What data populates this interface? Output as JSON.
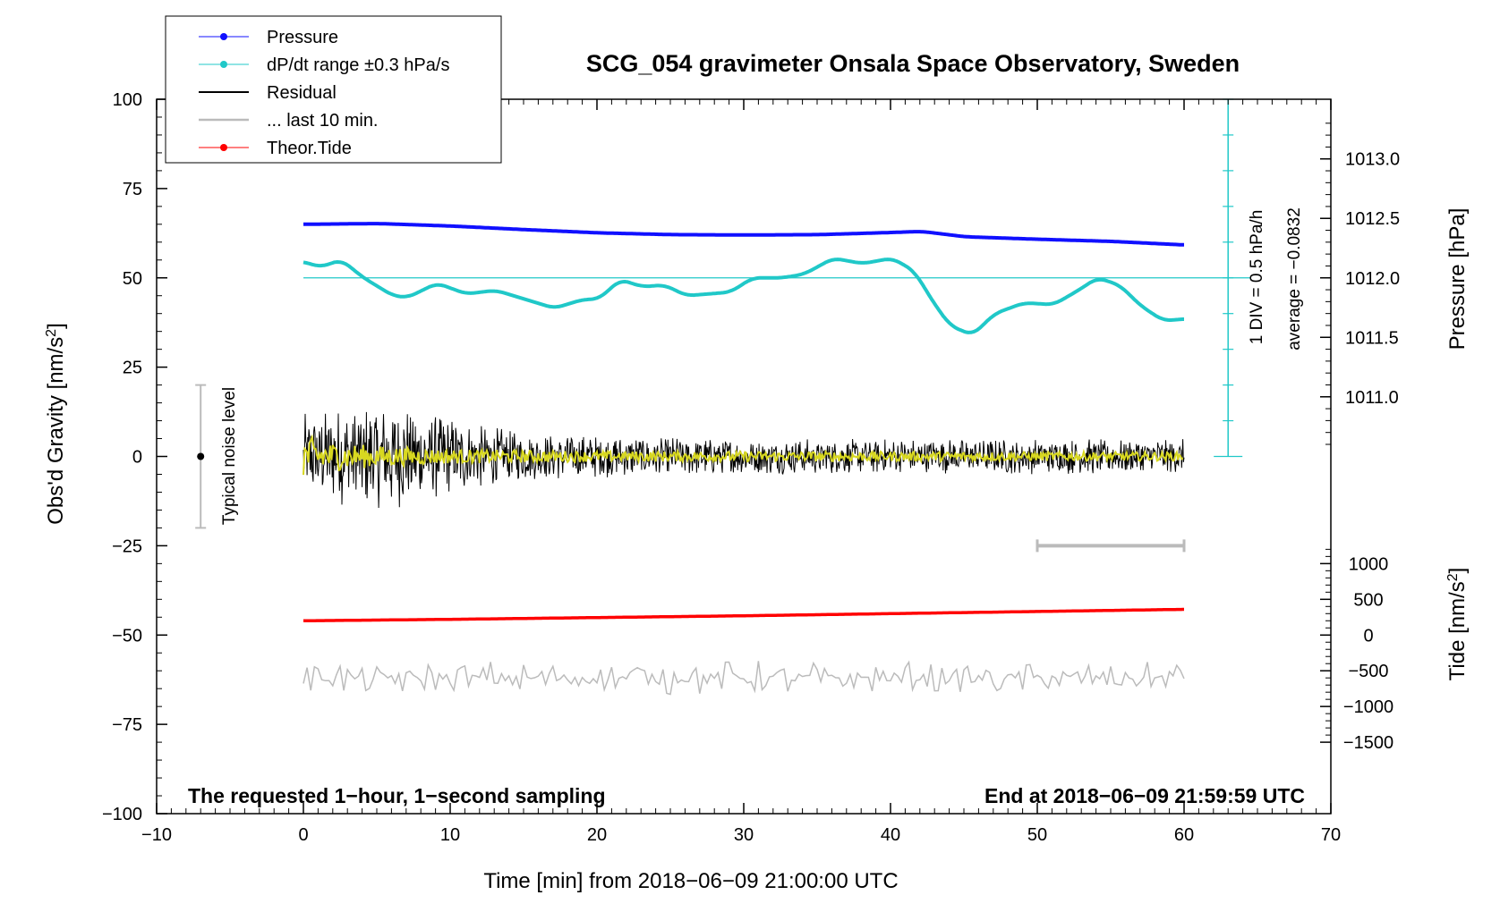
{
  "chart_data": {
    "type": "line",
    "title": "SCG_054 gravimeter Onsala Space Observatory, Sweden",
    "xlabel": "Time [min] from 2018−06−09 21:00:00 UTC",
    "ylabel_left": "Obs'd Gravity [nm/s²]",
    "ylabel_right_pressure": "Pressure [hPa]",
    "ylabel_right_tide": "Tide [nm/s²]",
    "xlim": [
      -10,
      70
    ],
    "ylim": [
      -100,
      100
    ],
    "x_ticks": [
      -10,
      0,
      10,
      20,
      30,
      40,
      50,
      60,
      70
    ],
    "x_tick_labels": [
      "−10",
      "0",
      "10",
      "20",
      "30",
      "40",
      "50",
      "60",
      "70"
    ],
    "y_ticks": [
      100,
      75,
      50,
      25,
      0,
      -25,
      -50,
      -75,
      -100
    ],
    "y_tick_labels": [
      "100",
      "75",
      "50",
      "25",
      "0",
      "−25",
      "−50",
      "−75",
      "−100"
    ],
    "pressure_axis": {
      "ticks": [
        1013.0,
        1012.5,
        1012.0,
        1011.5,
        1011.0
      ],
      "tick_labels": [
        "1013.0",
        "1012.5",
        "1012.0",
        "1011.5",
        "1011.0"
      ],
      "gravity_equiv_of_1013": 83.3,
      "nm_per_hpa": 33.3
    },
    "tide_axis": {
      "ticks": [
        1000,
        500,
        0,
        -500,
        -1000,
        -1500
      ],
      "tick_labels": [
        "1000",
        "500",
        "0",
        "−500",
        "−1000",
        "−1500"
      ],
      "gravity_equiv_of_0": -50,
      "nm_per_unit": 0.02
    },
    "grid": false,
    "legend_position": "top-left",
    "legend": [
      {
        "label": "Pressure",
        "color": "#1010ff",
        "marker": true
      },
      {
        "label": "dP/dt range ±0.3 hPa/s",
        "color": "#20c8c8",
        "marker": true
      },
      {
        "label": "Residual",
        "color": "#000000",
        "marker": false
      },
      {
        "label": "... last 10 min.",
        "color": "#bbbbbb",
        "marker": false
      },
      {
        "label": "Theor.Tide",
        "color": "#ff0000",
        "marker": true
      }
    ],
    "series": [
      {
        "name": "Pressure",
        "color": "#1010ff",
        "axis": "gravity-equivalent",
        "x": [
          0,
          5,
          10,
          15,
          20,
          25,
          30,
          35,
          40,
          42,
          45,
          50,
          55,
          60
        ],
        "y": [
          65,
          65.2,
          64.5,
          63.5,
          62.6,
          62.1,
          62.0,
          62.1,
          62.7,
          63.0,
          61.5,
          60.8,
          60.2,
          59.2
        ]
      },
      {
        "name": "dP/dt",
        "color": "#20c8c8",
        "axis": "gravity-equivalent",
        "x": [
          0,
          1,
          2.5,
          4,
          6,
          7,
          9,
          11,
          13,
          15,
          17,
          19,
          20,
          21.5,
          23,
          24.5,
          26,
          27.5,
          29,
          30.5,
          32.5,
          34,
          36,
          38,
          40,
          41.5,
          43,
          44,
          45.5,
          47,
          49,
          51,
          52.5,
          54,
          55.5,
          57,
          58.5,
          60
        ],
        "y": [
          54.5,
          53,
          55,
          50,
          45,
          44.5,
          48.5,
          45.5,
          46.5,
          44,
          41.5,
          44,
          44,
          49.5,
          47.5,
          48,
          45,
          45.5,
          46,
          50,
          50,
          51,
          55.5,
          54,
          55.5,
          52,
          42,
          36.5,
          34,
          40,
          43,
          42.5,
          46,
          50,
          48,
          42,
          38,
          38.5
        ]
      },
      {
        "name": "Residual",
        "color": "#000000",
        "envelope_x": [
          0,
          3,
          6,
          9,
          12,
          15,
          20,
          30,
          40,
          50,
          60
        ],
        "envelope_amp": [
          12,
          14,
          15,
          12,
          9,
          7,
          6,
          5,
          5,
          5,
          5
        ]
      },
      {
        "name": "Residual smoothed",
        "color": "#d8d820",
        "envelope_x": [
          0,
          2,
          5,
          10,
          20,
          60
        ],
        "envelope_amp": [
          6,
          4,
          3,
          2,
          1.5,
          1.2
        ]
      },
      {
        "name": "... last 10 min.",
        "color": "#bbbbbb",
        "center": -62,
        "amplitude": 5
      },
      {
        "name": "Theor.Tide",
        "color": "#ff0000",
        "x": [
          0,
          10,
          20,
          30,
          40,
          50,
          60
        ],
        "y": [
          -46,
          -45.6,
          -45.1,
          -44.6,
          -44.0,
          -43.4,
          -42.8
        ]
      }
    ],
    "annotations": {
      "dpdt_scale": "1 DIV = 0.5 hPa/h",
      "dpdt_average": "average = −0.0832",
      "dpdt_reference_y": 50,
      "dpdt_scale_x": 63,
      "dpdt_scale_range": [
        0,
        100
      ],
      "dpdt_scale_divisions": 10,
      "noise_label": "Typical noise level",
      "noise_bar_x": -7,
      "noise_bar_range": [
        -20,
        20
      ],
      "last10_bar_x": [
        50,
        60
      ],
      "last10_bar_y": -25,
      "bottom_left": "The requested 1−hour, 1−second sampling",
      "bottom_right": "End at 2018−06−09 21:59:59 UTC"
    }
  }
}
